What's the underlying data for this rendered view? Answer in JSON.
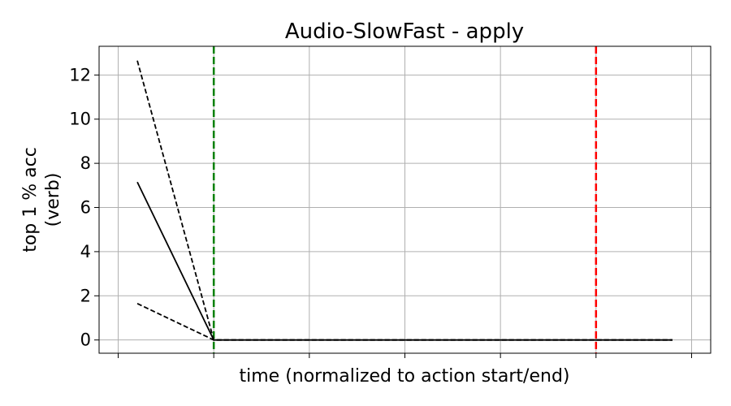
{
  "chart_data": {
    "type": "line",
    "title": "Audio-SlowFast - apply",
    "xlabel": "time (normalized to action start/end)",
    "ylabel_lines": [
      "top 1 % acc",
      "(verb)"
    ],
    "ylim": [
      -0.6,
      13.3
    ],
    "xlim": [
      -1.2,
      5.2
    ],
    "yticks": [
      0,
      2,
      4,
      6,
      8,
      10,
      12
    ],
    "xticks": [
      -1,
      0,
      1,
      2,
      3,
      4,
      5
    ],
    "grid": true,
    "vlines": [
      {
        "x": 0,
        "color": "#008000",
        "style": "dashed"
      },
      {
        "x": 4,
        "color": "#ff0000",
        "style": "dashed"
      }
    ],
    "series": [
      {
        "style": "solid",
        "color": "#000000",
        "x": [
          -0.8,
          0,
          0.5,
          1,
          1.5,
          2,
          2.5,
          3,
          3.5,
          4,
          4.5,
          4.8
        ],
        "values": [
          7.15,
          0,
          0,
          0,
          0,
          0,
          0,
          0,
          0,
          0,
          0,
          0
        ]
      },
      {
        "style": "dashed",
        "color": "#000000",
        "x": [
          -0.8,
          0,
          0.5,
          1,
          1.5,
          2,
          2.5,
          3,
          3.5,
          4,
          4.5,
          4.8
        ],
        "values": [
          12.65,
          0,
          0,
          0,
          0,
          0,
          0,
          0,
          0,
          0,
          0,
          0
        ]
      },
      {
        "style": "dashed",
        "color": "#000000",
        "x": [
          -0.8,
          0,
          0.5,
          1,
          1.5,
          2,
          2.5,
          3,
          3.5,
          4,
          4.5,
          4.8
        ],
        "values": [
          1.65,
          0,
          0,
          0,
          0,
          0,
          0,
          0,
          0,
          0,
          0,
          0
        ]
      }
    ]
  }
}
